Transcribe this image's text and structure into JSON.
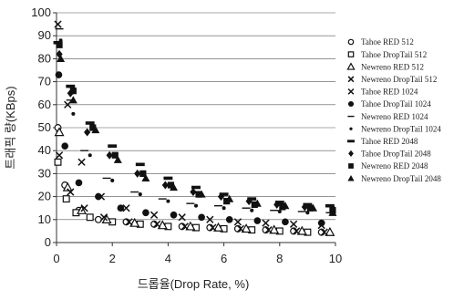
{
  "chart_data": {
    "type": "scatter",
    "title": "",
    "xlabel": "드롭율(Drop Rate, %)",
    "ylabel": "트래픽 량(KBps)",
    "xlim": [
      0,
      10
    ],
    "ylim": [
      0,
      100
    ],
    "x_ticks": [
      "0",
      "2",
      "4",
      "6",
      "8",
      "10"
    ],
    "y_ticks": [
      "0",
      "10",
      "20",
      "30",
      "40",
      "50",
      "60",
      "70",
      "80",
      "90",
      "100"
    ],
    "grid": "horizontal",
    "legend_position": "right",
    "series": [
      {
        "name": "Tahoe RED 512",
        "marker": "open-circle",
        "points": [
          [
            0.05,
            50
          ],
          [
            0.3,
            25
          ],
          [
            0.8,
            14
          ],
          [
            1.5,
            10
          ],
          [
            2.5,
            9
          ],
          [
            3.5,
            8
          ],
          [
            4.5,
            7
          ],
          [
            5.5,
            6.5
          ],
          [
            6.5,
            6
          ],
          [
            7.5,
            5.5
          ],
          [
            8.5,
            5
          ],
          [
            9.5,
            4.5
          ]
        ]
      },
      {
        "name": "Tahoe DropTail 512",
        "marker": "open-square",
        "points": [
          [
            0.05,
            35
          ],
          [
            0.35,
            19
          ],
          [
            0.7,
            13
          ],
          [
            1.2,
            11
          ],
          [
            2.0,
            9
          ],
          [
            3.0,
            8
          ],
          [
            4.0,
            7
          ],
          [
            5.0,
            6.5
          ],
          [
            6.0,
            6
          ],
          [
            7.0,
            5.5
          ],
          [
            8.0,
            5
          ],
          [
            9.0,
            4.5
          ]
        ]
      },
      {
        "name": "Newreno RED 512",
        "marker": "open-triangle",
        "points": [
          [
            0.1,
            48
          ],
          [
            0.4,
            24
          ],
          [
            0.9,
            14
          ],
          [
            1.8,
            10
          ],
          [
            2.8,
            8.5
          ],
          [
            3.8,
            7.5
          ],
          [
            4.8,
            7
          ],
          [
            5.8,
            6.5
          ],
          [
            6.8,
            6
          ],
          [
            7.8,
            5.5
          ],
          [
            8.8,
            5
          ],
          [
            9.8,
            4.5
          ]
        ]
      },
      {
        "name": "Newreno DropTail 512",
        "marker": "x",
        "points": [
          [
            0.1,
            38
          ],
          [
            0.5,
            22
          ],
          [
            1.0,
            15
          ],
          [
            1.7,
            11
          ],
          [
            2.6,
            9
          ],
          [
            3.6,
            8
          ],
          [
            4.6,
            7
          ],
          [
            5.6,
            6.5
          ],
          [
            6.6,
            6
          ],
          [
            7.6,
            5.5
          ],
          [
            8.6,
            5
          ],
          [
            9.6,
            4.5
          ]
        ]
      },
      {
        "name": "Tahoe RED 1024",
        "marker": "x",
        "points": [
          [
            0.05,
            95
          ],
          [
            0.4,
            60
          ],
          [
            0.9,
            35
          ],
          [
            1.6,
            20
          ],
          [
            2.5,
            15
          ],
          [
            3.5,
            12
          ],
          [
            4.5,
            11
          ],
          [
            5.5,
            10
          ],
          [
            6.5,
            9
          ],
          [
            7.5,
            8.5
          ],
          [
            8.5,
            8
          ],
          [
            9.5,
            7.5
          ]
        ]
      },
      {
        "name": "Tahoe DropTail 1024",
        "marker": "filled-circle",
        "points": [
          [
            0.08,
            73
          ],
          [
            0.3,
            42
          ],
          [
            0.8,
            26
          ],
          [
            1.5,
            20
          ],
          [
            2.3,
            15
          ],
          [
            3.2,
            13
          ],
          [
            4.2,
            12
          ],
          [
            5.2,
            11
          ],
          [
            6.2,
            10
          ],
          [
            7.2,
            9.5
          ],
          [
            8.2,
            9
          ],
          [
            9.5,
            8.5
          ]
        ]
      },
      {
        "name": "Newreno RED 1024",
        "marker": "dash",
        "points": [
          [
            0.1,
            93
          ],
          [
            0.5,
            62
          ],
          [
            1.0,
            40
          ],
          [
            1.8,
            28
          ],
          [
            2.8,
            22
          ],
          [
            3.8,
            19
          ],
          [
            4.8,
            17
          ],
          [
            5.8,
            16
          ],
          [
            6.8,
            15
          ],
          [
            7.8,
            14
          ],
          [
            8.8,
            13.5
          ],
          [
            9.8,
            13
          ]
        ]
      },
      {
        "name": "Newreno DropTail 1024",
        "marker": "small-dot",
        "points": [
          [
            0.15,
            88
          ],
          [
            0.6,
            56
          ],
          [
            1.2,
            38
          ],
          [
            2.0,
            27
          ],
          [
            3.0,
            21
          ],
          [
            4.0,
            18
          ],
          [
            5.0,
            16
          ],
          [
            6.0,
            15
          ],
          [
            7.0,
            14
          ],
          [
            8.0,
            13.5
          ],
          [
            9.0,
            13
          ],
          [
            9.9,
            12.5
          ]
        ]
      },
      {
        "name": "Tahoe RED 2048",
        "marker": "bar",
        "points": [
          [
            0.05,
            87
          ],
          [
            0.5,
            68
          ],
          [
            1.2,
            52
          ],
          [
            2.0,
            42
          ],
          [
            3.0,
            34
          ],
          [
            4.0,
            28
          ],
          [
            5.0,
            24
          ],
          [
            6.0,
            21
          ],
          [
            7.0,
            19
          ],
          [
            8.0,
            17.5
          ],
          [
            9.0,
            16.5
          ],
          [
            9.8,
            16
          ]
        ]
      },
      {
        "name": "Tahoe DropTail 2048",
        "marker": "filled-diamond",
        "points": [
          [
            0.1,
            82
          ],
          [
            0.5,
            65
          ],
          [
            1.1,
            48
          ],
          [
            1.9,
            38
          ],
          [
            2.9,
            30
          ],
          [
            3.9,
            25
          ],
          [
            4.9,
            22
          ],
          [
            5.9,
            20
          ],
          [
            6.9,
            18
          ],
          [
            7.9,
            16.5
          ],
          [
            8.9,
            15.5
          ],
          [
            9.9,
            15
          ]
        ]
      },
      {
        "name": "Newreno RED 2048",
        "marker": "filled-square",
        "points": [
          [
            0.1,
            86
          ],
          [
            0.6,
            66
          ],
          [
            1.3,
            50
          ],
          [
            2.1,
            38
          ],
          [
            3.1,
            30
          ],
          [
            4.1,
            25
          ],
          [
            5.1,
            21
          ],
          [
            6.1,
            18
          ],
          [
            7.1,
            16.5
          ],
          [
            8.1,
            15.5
          ],
          [
            9.1,
            15
          ],
          [
            9.9,
            14
          ]
        ]
      },
      {
        "name": "Newreno DropTail 2048",
        "marker": "filled-triangle",
        "points": [
          [
            0.15,
            80
          ],
          [
            0.6,
            62
          ],
          [
            1.4,
            49
          ],
          [
            2.2,
            36
          ],
          [
            3.2,
            28
          ],
          [
            4.2,
            24
          ],
          [
            5.2,
            21
          ],
          [
            6.2,
            19
          ],
          [
            7.2,
            17
          ],
          [
            8.2,
            16
          ],
          [
            9.2,
            15
          ],
          [
            9.9,
            13
          ]
        ]
      }
    ]
  }
}
